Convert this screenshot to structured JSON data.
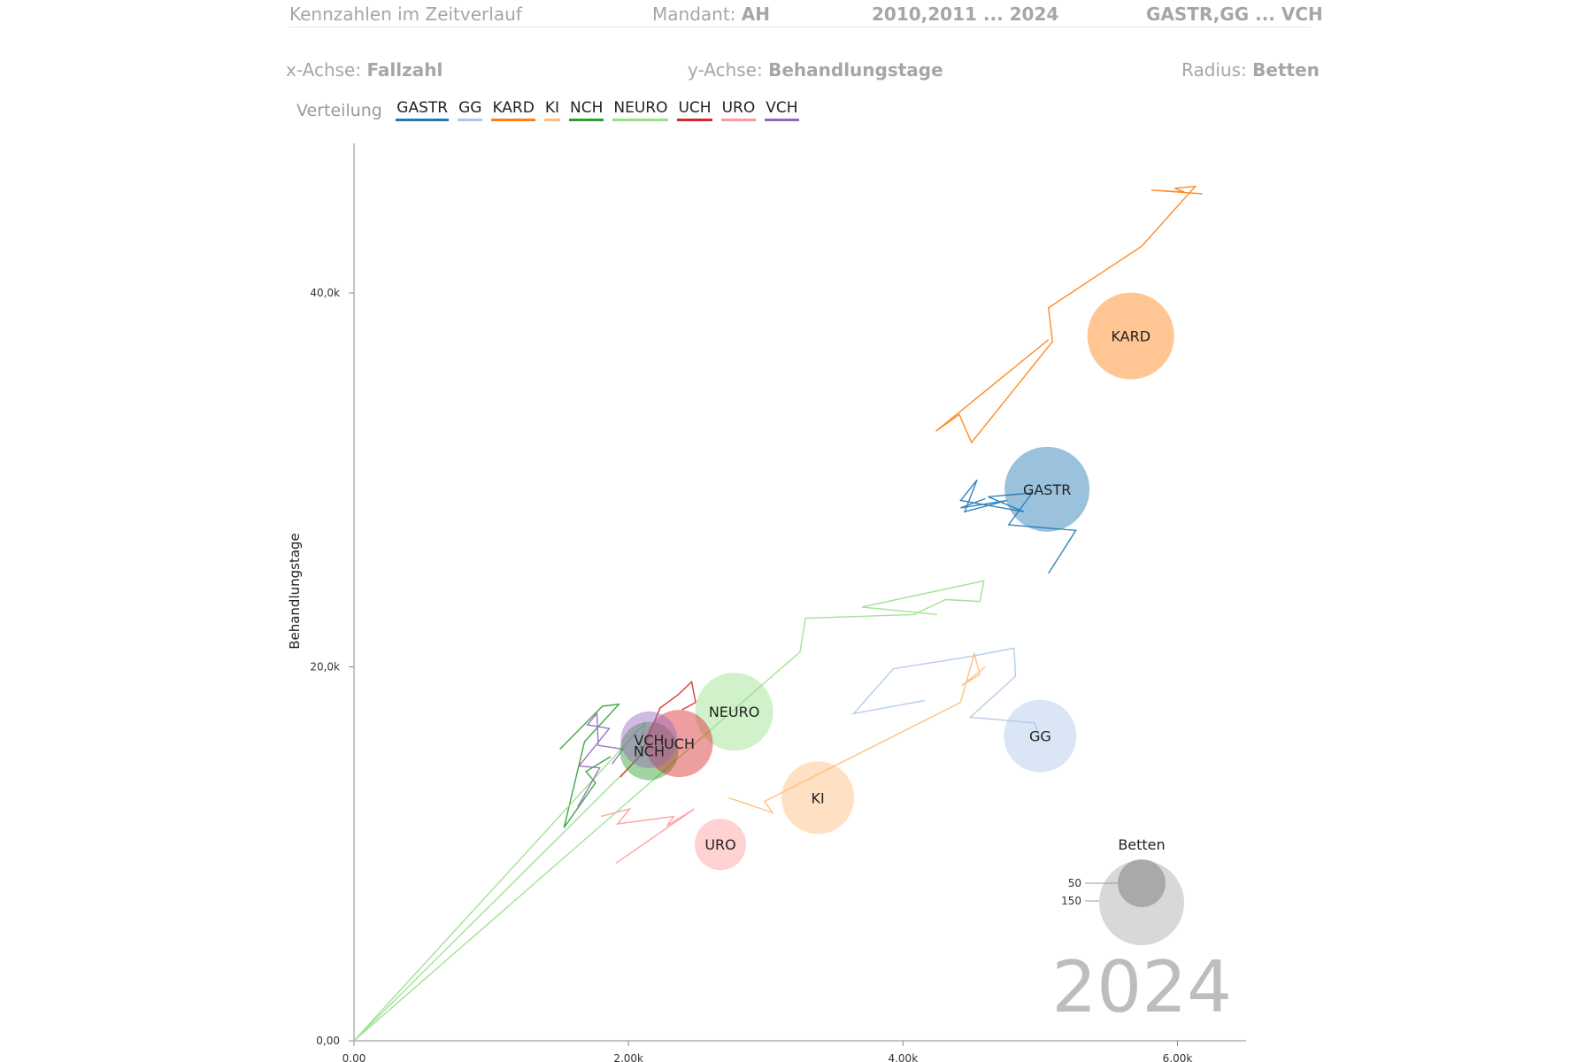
{
  "header": {
    "title": "Kennzahlen im Zeitverlauf",
    "mandant_label": "Mandant:",
    "mandant_value": "AH",
    "years": "2010,2011 ... 2024",
    "categories": "GASTR,GG ... VCH"
  },
  "axes_info": {
    "x_label": "x-Achse:",
    "x_value": "Fallzahl",
    "y_label": "y-Achse:",
    "y_value": "Behandlungstage",
    "r_label": "Radius:",
    "r_value": "Betten"
  },
  "legend": {
    "title": "Verteilung",
    "items": [
      {
        "name": "GASTR",
        "color": "#1f77b4"
      },
      {
        "name": "GG",
        "color": "#aec7e8"
      },
      {
        "name": "KARD",
        "color": "#ff7f0e"
      },
      {
        "name": "KI",
        "color": "#ffbb78"
      },
      {
        "name": "NCH",
        "color": "#2ca02c"
      },
      {
        "name": "NEURO",
        "color": "#98df8a"
      },
      {
        "name": "UCH",
        "color": "#d62728"
      },
      {
        "name": "URO",
        "color": "#ff9896"
      },
      {
        "name": "VCH",
        "color": "#9467bd"
      }
    ]
  },
  "chart_data": {
    "type": "scatter",
    "subtype": "bubble-trajectory",
    "xlabel": "",
    "ylabel": "Behandlungstage",
    "xlim": [
      0,
      6500
    ],
    "ylim": [
      0,
      48000
    ],
    "x_ticks": [
      0,
      2000,
      4000,
      6000
    ],
    "x_tick_labels": [
      "0,00",
      "2,00k",
      "4,00k",
      "6,00k"
    ],
    "y_ticks": [
      0,
      20000,
      40000
    ],
    "y_tick_labels": [
      "0,00",
      "20,0k",
      "40,0k"
    ],
    "current_year": "2024",
    "size_legend": {
      "title": "Betten",
      "values": [
        50,
        150
      ]
    },
    "series": [
      {
        "name": "GASTR",
        "color": "#1f77b4",
        "r": 48,
        "trail": [
          [
            5060,
            25000
          ],
          [
            5260,
            27300
          ],
          [
            4770,
            27600
          ],
          [
            4940,
            29300
          ],
          [
            4620,
            29100
          ],
          [
            4880,
            28300
          ],
          [
            4420,
            28900
          ],
          [
            4540,
            30000
          ],
          [
            4450,
            28300
          ],
          [
            4760,
            28900
          ],
          [
            4420,
            28500
          ],
          [
            4600,
            29000
          ]
        ],
        "current": [
          5050,
          29500
        ]
      },
      {
        "name": "GG",
        "color": "#aec7e8",
        "r": 41,
        "trail": [
          [
            5000,
            16100
          ],
          [
            4960,
            17000
          ],
          [
            4490,
            17300
          ],
          [
            4820,
            19500
          ],
          [
            4810,
            21000
          ],
          [
            4450,
            20500
          ],
          [
            3930,
            19900
          ],
          [
            3640,
            17500
          ],
          [
            4160,
            18200
          ]
        ],
        "current": [
          5000,
          16300
        ]
      },
      {
        "name": "KARD",
        "color": "#ff7f0e",
        "r": 49,
        "trail": [
          [
            6180,
            45300
          ],
          [
            5810,
            45500
          ],
          [
            6050,
            45400
          ],
          [
            5980,
            45600
          ],
          [
            6130,
            45700
          ],
          [
            5740,
            42500
          ],
          [
            5060,
            39200
          ],
          [
            5090,
            37400
          ],
          [
            4500,
            32000
          ],
          [
            4410,
            33500
          ],
          [
            4240,
            32600
          ],
          [
            5060,
            37500
          ]
        ],
        "current": [
          5660,
          37700
        ]
      },
      {
        "name": "KI",
        "color": "#ffbb78",
        "r": 41,
        "trail": [
          [
            2730,
            13000
          ],
          [
            3050,
            12200
          ],
          [
            2990,
            12800
          ],
          [
            4420,
            18100
          ],
          [
            4520,
            20700
          ],
          [
            4560,
            19600
          ],
          [
            4430,
            19000
          ],
          [
            4600,
            20000
          ]
        ],
        "current": [
          3380,
          13000
        ]
      },
      {
        "name": "NCH",
        "color": "#2ca02c",
        "r": 33,
        "trail": [
          [
            1500,
            15600
          ],
          [
            1810,
            17900
          ],
          [
            1930,
            18000
          ],
          [
            1680,
            16000
          ],
          [
            1530,
            11400
          ],
          [
            1760,
            13800
          ],
          [
            1690,
            14400
          ],
          [
            1870,
            15200
          ]
        ],
        "current": [
          2150,
          15500
        ]
      },
      {
        "name": "NEURO",
        "color": "#98df8a",
        "r": 44,
        "trail": [
          [
            0,
            0
          ],
          [
            2070,
            15100
          ],
          [
            2120,
            17000
          ],
          [
            0,
            0
          ],
          [
            3250,
            20800
          ],
          [
            3290,
            22600
          ],
          [
            4080,
            22800
          ],
          [
            4310,
            23600
          ],
          [
            4560,
            23500
          ],
          [
            4590,
            24600
          ],
          [
            3700,
            23200
          ],
          [
            4250,
            22800
          ]
        ],
        "current": [
          2770,
          17600
        ]
      },
      {
        "name": "UCH",
        "color": "#d62728",
        "r": 38,
        "trail": [
          [
            1940,
            14100
          ],
          [
            2090,
            15300
          ],
          [
            2230,
            17800
          ],
          [
            2360,
            18500
          ],
          [
            2460,
            19200
          ],
          [
            2490,
            18100
          ],
          [
            2390,
            17700
          ]
        ],
        "current": [
          2370,
          15900
        ]
      },
      {
        "name": "URO",
        "color": "#ff9896",
        "r": 29,
        "trail": [
          [
            1800,
            12000
          ],
          [
            2010,
            12400
          ],
          [
            1920,
            11600
          ],
          [
            2330,
            12000
          ],
          [
            2280,
            11500
          ],
          [
            2480,
            12400
          ],
          [
            1910,
            9500
          ]
        ],
        "current": [
          2670,
          10500
        ]
      },
      {
        "name": "VCH",
        "color": "#9467bd",
        "r": 32,
        "trail": [
          [
            1630,
            12500
          ],
          [
            1790,
            14600
          ],
          [
            1640,
            14700
          ],
          [
            1860,
            16700
          ],
          [
            1700,
            16900
          ],
          [
            1770,
            17500
          ],
          [
            1780,
            15800
          ],
          [
            1960,
            15600
          ],
          [
            1880,
            14800
          ]
        ],
        "current": [
          2150,
          16100
        ]
      }
    ]
  }
}
